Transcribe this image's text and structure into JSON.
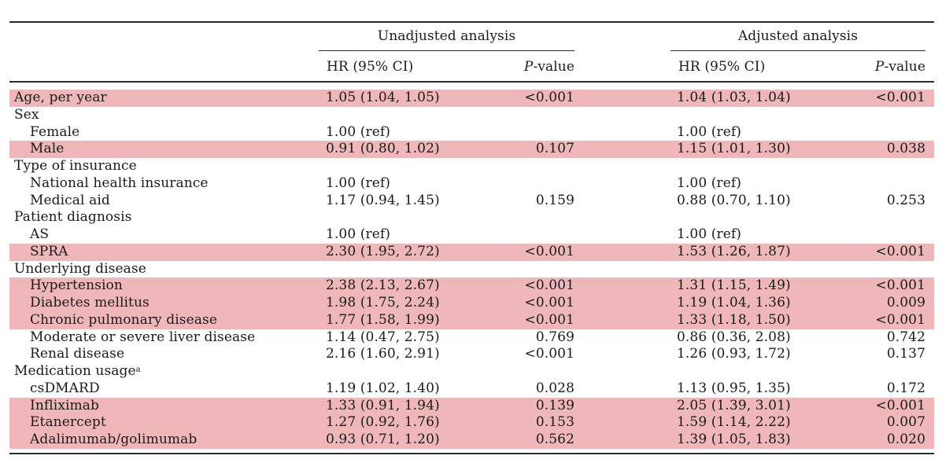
{
  "header": {
    "unadjusted": "Unadjusted analysis",
    "adjusted": "Adjusted analysis",
    "hr_ci": "HR (95% CI)",
    "p_italic": "P",
    "p_suffix": "-value"
  },
  "rows": [
    {
      "label": "Age, per year",
      "indent": false,
      "hl": true,
      "hr1": "1.05 (1.04, 1.05)",
      "p1": "<0.001",
      "hr2": "1.04 (1.03, 1.04)",
      "p2": "<0.001"
    },
    {
      "label": "Sex",
      "indent": false,
      "hl": false,
      "hr1": "",
      "p1": "",
      "hr2": "",
      "p2": ""
    },
    {
      "label": "Female",
      "indent": true,
      "hl": false,
      "hr1": "1.00 (ref)",
      "p1": "",
      "hr2": "1.00 (ref)",
      "p2": ""
    },
    {
      "label": "Male",
      "indent": true,
      "hl": true,
      "hr1": "0.91 (0.80, 1.02)",
      "p1": "0.107",
      "hr2": "1.15 (1.01, 1.30)",
      "p2": "0.038"
    },
    {
      "label": "Type of insurance",
      "indent": false,
      "hl": false,
      "hr1": "",
      "p1": "",
      "hr2": "",
      "p2": ""
    },
    {
      "label": "National health insurance",
      "indent": true,
      "hl": false,
      "hr1": "1.00 (ref)",
      "p1": "",
      "hr2": "1.00 (ref)",
      "p2": ""
    },
    {
      "label": "Medical aid",
      "indent": true,
      "hl": false,
      "hr1": "1.17 (0.94, 1.45)",
      "p1": "0.159",
      "hr2": "0.88 (0.70, 1.10)",
      "p2": "0.253"
    },
    {
      "label": "Patient diagnosis",
      "indent": false,
      "hl": false,
      "hr1": "",
      "p1": "",
      "hr2": "",
      "p2": ""
    },
    {
      "label": "AS",
      "indent": true,
      "hl": false,
      "hr1": "1.00 (ref)",
      "p1": "",
      "hr2": "1.00 (ref)",
      "p2": ""
    },
    {
      "label": "SPRA",
      "indent": true,
      "hl": true,
      "hr1": "2.30 (1.95, 2.72)",
      "p1": "<0.001",
      "hr2": "1.53 (1.26, 1.87)",
      "p2": "<0.001"
    },
    {
      "label": "Underlying disease",
      "indent": false,
      "hl": false,
      "hr1": "",
      "p1": "",
      "hr2": "",
      "p2": ""
    },
    {
      "label": "Hypertension",
      "indent": true,
      "hl": true,
      "hr1": "2.38 (2.13, 2.67)",
      "p1": "<0.001",
      "hr2": "1.31 (1.15, 1.49)",
      "p2": "<0.001"
    },
    {
      "label": "Diabetes mellitus",
      "indent": true,
      "hl": true,
      "hr1": "1.98 (1.75, 2.24)",
      "p1": "<0.001",
      "hr2": "1.19 (1.04, 1.36)",
      "p2": "0.009"
    },
    {
      "label": "Chronic pulmonary disease",
      "indent": true,
      "hl": true,
      "hr1": "1.77 (1.58, 1.99)",
      "p1": "<0.001",
      "hr2": "1.33 (1.18, 1.50)",
      "p2": "<0.001"
    },
    {
      "label": "Moderate or severe liver disease",
      "indent": true,
      "hl": false,
      "hr1": "1.14 (0.47, 2.75)",
      "p1": "0.769",
      "hr2": "0.86 (0.36, 2.08)",
      "p2": "0.742"
    },
    {
      "label": "Renal disease",
      "indent": true,
      "hl": false,
      "hr1": "2.16 (1.60, 2.91)",
      "p1": "<0.001",
      "hr2": "1.26 (0.93, 1.72)",
      "p2": "0.137"
    },
    {
      "label": "Medication usage",
      "sup": "a",
      "indent": false,
      "hl": false,
      "hr1": "",
      "p1": "",
      "hr2": "",
      "p2": ""
    },
    {
      "label": "csDMARD",
      "indent": true,
      "hl": false,
      "hr1": "1.19 (1.02, 1.40)",
      "p1": "0.028",
      "hr2": "1.13 (0.95, 1.35)",
      "p2": "0.172"
    },
    {
      "label": "Infliximab",
      "indent": true,
      "hl": true,
      "hr1": "1.33 (0.91, 1.94)",
      "p1": "0.139",
      "hr2": "2.05 (1.39, 3.01)",
      "p2": "<0.001"
    },
    {
      "label": "Etanercept",
      "indent": true,
      "hl": true,
      "hr1": "1.27 (0.92, 1.76)",
      "p1": "0.153",
      "hr2": "1.59 (1.14, 2.22)",
      "p2": "0.007"
    },
    {
      "label": "Adalimumab/golimumab",
      "indent": true,
      "hl": true,
      "hr1": "0.93 (0.71, 1.20)",
      "p1": "0.562",
      "hr2": "1.39 (1.05, 1.83)",
      "p2": "0.020"
    }
  ],
  "colors": {
    "highlight": "#efb7b9",
    "rule": "#2a2a2a"
  }
}
